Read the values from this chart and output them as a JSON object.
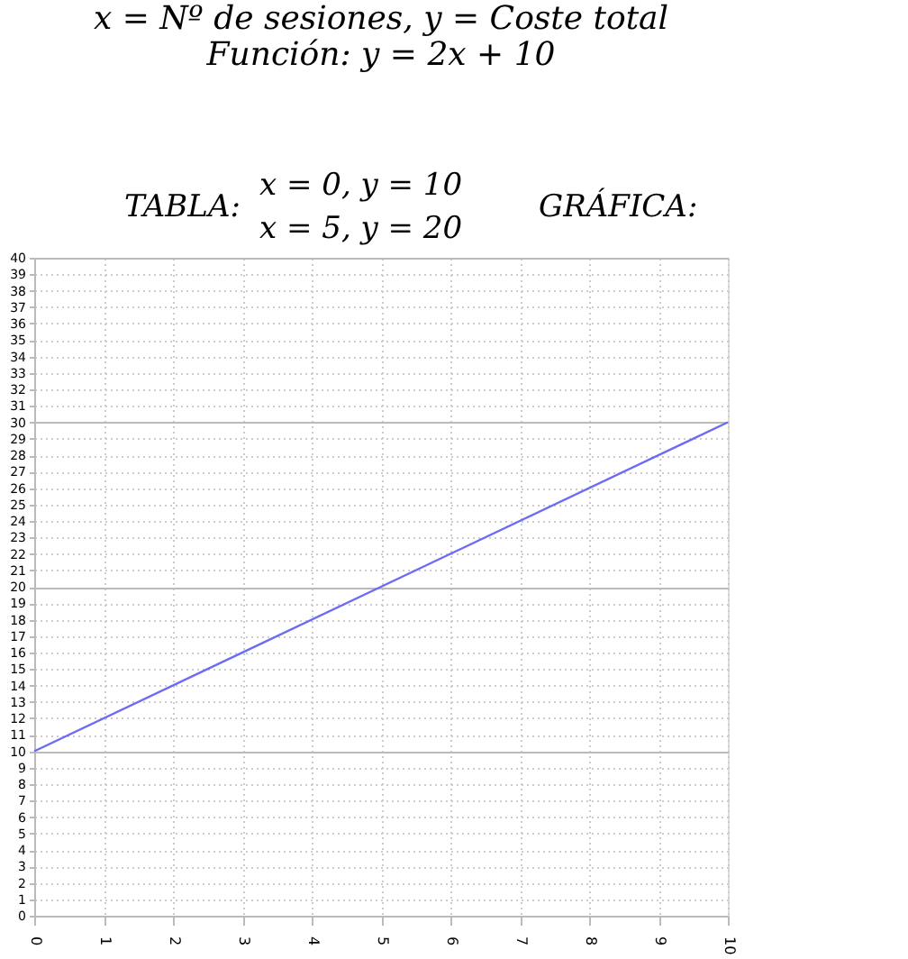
{
  "chart_data": {
    "type": "line",
    "title": "x = Nº  de sesiones,        y = Coste total",
    "subtitle": "Función: y = 2x + 10",
    "annotations": [
      "TABLA:",
      "x = 0, y = 10",
      "x = 5, y = 20",
      "GRÁFICA:"
    ],
    "x": [
      0,
      5,
      10
    ],
    "series": [
      {
        "color": "#6b6bf5",
        "values": [
          10,
          20,
          30
        ]
      }
    ],
    "xlim": [
      0,
      10
    ],
    "xticks": [
      0,
      1,
      2,
      3,
      4,
      5,
      6,
      7,
      8,
      9,
      10
    ],
    "ylim": [
      0,
      40
    ],
    "yticks": [
      0,
      1,
      2,
      3,
      4,
      5,
      6,
      7,
      8,
      9,
      10,
      11,
      12,
      13,
      14,
      15,
      16,
      17,
      18,
      19,
      20,
      21,
      22,
      23,
      24,
      25,
      26,
      27,
      28,
      29,
      30,
      31,
      32,
      33,
      34,
      35,
      36,
      37,
      38,
      39,
      40
    ],
    "grid": true,
    "marker": "none",
    "line_style": "solid",
    "legend": false
  }
}
